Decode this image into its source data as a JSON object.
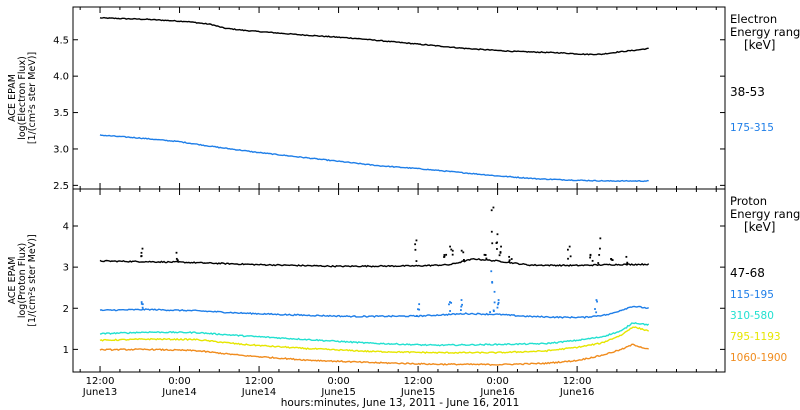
{
  "chart_data": [
    {
      "type": "line",
      "panel": "electron",
      "ylabel": [
        "ACE EPAM",
        "log(Electron Flux)",
        "[1/(cm²s ster MeV)]"
      ],
      "ylim": [
        2.45,
        4.95
      ],
      "yticks": [
        2.5,
        3.0,
        3.5,
        4.0,
        4.5
      ],
      "ytick_labels": [
        "2.5",
        "3.0",
        "3.5",
        "4.0",
        "4.5"
      ],
      "legend_title": [
        "Electron",
        "Energy range",
        "[keV]"
      ],
      "series": [
        {
          "name": "38-53",
          "color": "#000000",
          "points": [
            [
              0.0,
              4.8
            ],
            [
              0.3,
              4.78
            ],
            [
              0.55,
              4.75
            ],
            [
              0.7,
              4.71
            ],
            [
              0.78,
              4.66
            ],
            [
              0.9,
              4.63
            ],
            [
              1.25,
              4.57
            ],
            [
              1.6,
              4.52
            ],
            [
              1.8,
              4.48
            ],
            [
              2.0,
              4.44
            ],
            [
              2.3,
              4.38
            ],
            [
              2.6,
              4.34
            ],
            [
              2.9,
              4.32
            ],
            [
              3.05,
              4.3
            ],
            [
              3.15,
              4.3
            ],
            [
              3.25,
              4.33
            ],
            [
              3.38,
              4.36
            ],
            [
              3.45,
              4.38
            ]
          ]
        },
        {
          "name": "175-315",
          "color": "#1e7ee8",
          "points": [
            [
              0.0,
              3.19
            ],
            [
              0.25,
              3.15
            ],
            [
              0.5,
              3.1
            ],
            [
              0.75,
              3.02
            ],
            [
              1.0,
              2.95
            ],
            [
              1.25,
              2.89
            ],
            [
              1.5,
              2.83
            ],
            [
              1.75,
              2.77
            ],
            [
              2.0,
              2.73
            ],
            [
              2.25,
              2.68
            ],
            [
              2.5,
              2.63
            ],
            [
              2.75,
              2.59
            ],
            [
              3.0,
              2.57
            ],
            [
              3.2,
              2.56
            ],
            [
              3.45,
              2.56
            ]
          ]
        }
      ]
    },
    {
      "type": "scatter",
      "panel": "proton",
      "ylabel": [
        "ACE EPAM",
        "log(Proton Flux)",
        "[1/(cm²s ster MeV)]"
      ],
      "ylim": [
        0.45,
        4.9
      ],
      "yticks": [
        1,
        2,
        3,
        4
      ],
      "ytick_labels": [
        "1",
        "2",
        "3",
        "4"
      ],
      "legend_title": [
        "Proton",
        "Energy range",
        "[keV]"
      ],
      "series": [
        {
          "name": "47-68",
          "color": "#000000",
          "points": [
            [
              0.0,
              3.15
            ],
            [
              0.5,
              3.12
            ],
            [
              1.0,
              3.06
            ],
            [
              1.5,
              3.02
            ],
            [
              2.0,
              3.03
            ],
            [
              2.2,
              3.06
            ],
            [
              2.35,
              3.2
            ],
            [
              2.5,
              3.15
            ],
            [
              2.7,
              3.05
            ],
            [
              3.0,
              3.04
            ],
            [
              3.2,
              3.06
            ],
            [
              3.45,
              3.07
            ]
          ],
          "spikes": [
            [
              0.26,
              3.45
            ],
            [
              0.49,
              3.35
            ],
            [
              1.99,
              3.65
            ],
            [
              2.17,
              3.3
            ],
            [
              2.21,
              3.5
            ],
            [
              2.28,
              3.4
            ],
            [
              2.42,
              3.3
            ],
            [
              2.47,
              4.45
            ],
            [
              2.5,
              3.8
            ],
            [
              2.52,
              3.5
            ],
            [
              2.58,
              3.25
            ],
            [
              2.95,
              3.5
            ],
            [
              3.09,
              3.3
            ],
            [
              3.14,
              3.7
            ],
            [
              3.22,
              3.2
            ],
            [
              3.31,
              3.25
            ]
          ]
        },
        {
          "name": "115-195",
          "color": "#1e7ee8",
          "points": [
            [
              0.0,
              1.95
            ],
            [
              0.3,
              1.97
            ],
            [
              0.6,
              1.94
            ],
            [
              0.9,
              1.88
            ],
            [
              1.2,
              1.84
            ],
            [
              1.6,
              1.8
            ],
            [
              2.0,
              1.81
            ],
            [
              2.3,
              1.87
            ],
            [
              2.5,
              1.85
            ],
            [
              2.7,
              1.8
            ],
            [
              2.9,
              1.78
            ],
            [
              3.05,
              1.78
            ],
            [
              3.2,
              1.85
            ],
            [
              3.35,
              2.05
            ],
            [
              3.45,
              2.0
            ]
          ],
          "spikes": [
            [
              0.26,
              2.15
            ],
            [
              2.0,
              2.1
            ],
            [
              2.2,
              2.15
            ],
            [
              2.27,
              2.2
            ],
            [
              2.46,
              2.9
            ],
            [
              2.48,
              2.4
            ],
            [
              2.5,
              2.2
            ],
            [
              3.12,
              2.2
            ]
          ]
        },
        {
          "name": "310-580",
          "color": "#22e0d0",
          "points": [
            [
              0.0,
              1.38
            ],
            [
              0.3,
              1.42
            ],
            [
              0.6,
              1.41
            ],
            [
              0.9,
              1.33
            ],
            [
              1.3,
              1.24
            ],
            [
              1.7,
              1.15
            ],
            [
              2.1,
              1.1
            ],
            [
              2.5,
              1.12
            ],
            [
              2.8,
              1.14
            ],
            [
              3.0,
              1.22
            ],
            [
              3.15,
              1.3
            ],
            [
              3.28,
              1.45
            ],
            [
              3.35,
              1.65
            ],
            [
              3.45,
              1.6
            ]
          ]
        },
        {
          "name": "795-1193",
          "color": "#e6e600",
          "points": [
            [
              0.0,
              1.22
            ],
            [
              0.3,
              1.25
            ],
            [
              0.6,
              1.24
            ],
            [
              0.9,
              1.12
            ],
            [
              1.3,
              1.02
            ],
            [
              1.7,
              0.95
            ],
            [
              2.1,
              0.92
            ],
            [
              2.5,
              0.92
            ],
            [
              2.8,
              0.96
            ],
            [
              3.0,
              1.05
            ],
            [
              3.15,
              1.15
            ],
            [
              3.28,
              1.35
            ],
            [
              3.35,
              1.55
            ],
            [
              3.45,
              1.45
            ]
          ]
        },
        {
          "name": "1060-1900",
          "color": "#f08c1e",
          "points": [
            [
              0.0,
              0.99
            ],
            [
              0.3,
              1.0
            ],
            [
              0.6,
              0.97
            ],
            [
              0.9,
              0.85
            ],
            [
              1.3,
              0.74
            ],
            [
              1.7,
              0.68
            ],
            [
              2.1,
              0.64
            ],
            [
              2.5,
              0.63
            ],
            [
              2.8,
              0.66
            ],
            [
              3.0,
              0.73
            ],
            [
              3.15,
              0.85
            ],
            [
              3.28,
              1.0
            ],
            [
              3.35,
              1.12
            ],
            [
              3.45,
              1.0
            ]
          ]
        }
      ]
    }
  ],
  "xaxis": {
    "title": "hours:minutes, June 13, 2011 - June 16, 2011",
    "range_days": [
      -0.17,
      3.93
    ],
    "ticks": [
      {
        "day": 0.0,
        "time": "12:00",
        "date": "June13"
      },
      {
        "day": 0.5,
        "time": "0:00",
        "date": "June14"
      },
      {
        "day": 1.0,
        "time": "12:00",
        "date": "June14"
      },
      {
        "day": 1.5,
        "time": "0:00",
        "date": "June15"
      },
      {
        "day": 2.0,
        "time": "12:00",
        "date": "June15"
      },
      {
        "day": 2.5,
        "time": "0:00",
        "date": "June16"
      },
      {
        "day": 3.0,
        "time": "12:00",
        "date": "June16"
      }
    ]
  }
}
